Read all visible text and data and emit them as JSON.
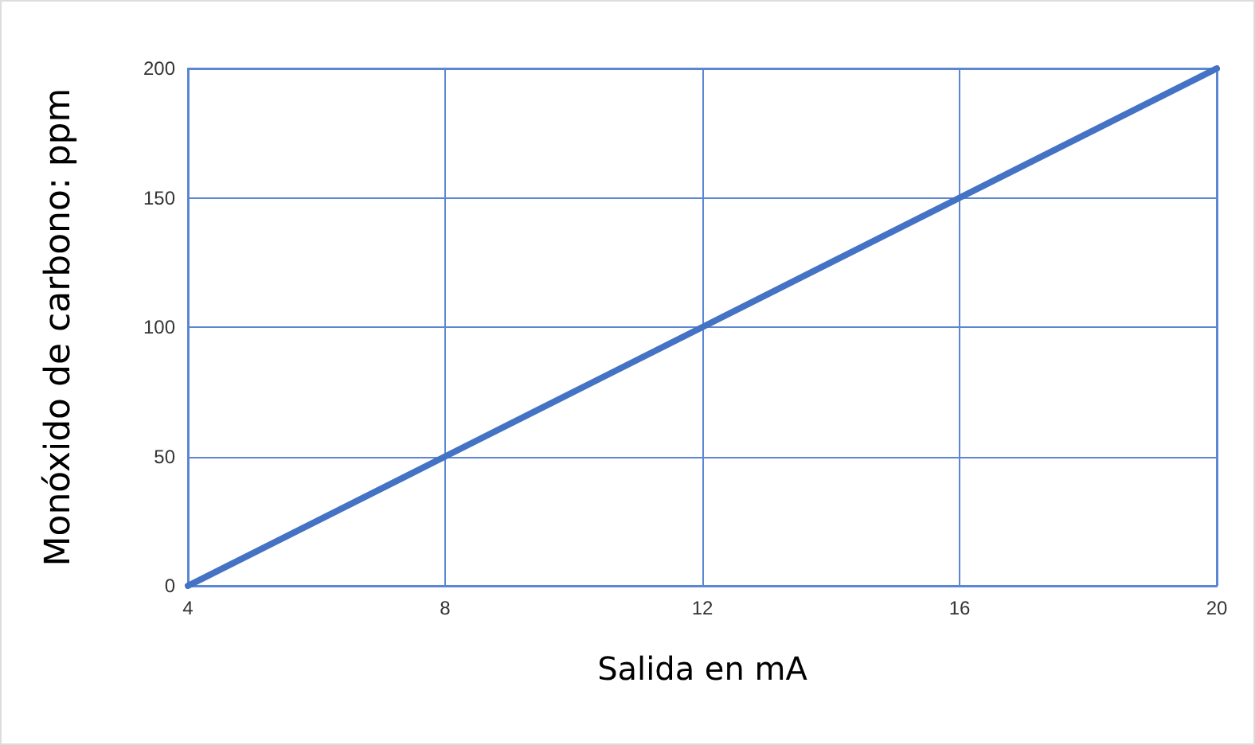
{
  "chart_data": {
    "type": "line",
    "xlabel": "Salida en mA",
    "ylabel": "Monóxido de carbono: ppm",
    "x": [
      4,
      8,
      12,
      16,
      20
    ],
    "series": [
      {
        "color": "#4472c4",
        "values": [
          0,
          50,
          100,
          150,
          200
        ]
      }
    ],
    "xlim": [
      4,
      20
    ],
    "xticks": [
      4,
      8,
      12,
      16,
      20
    ],
    "ylim": [
      0,
      200
    ],
    "yticks": [
      0,
      50,
      100,
      150,
      200
    ],
    "grid": true,
    "marker": "none",
    "line_style": "solid"
  }
}
